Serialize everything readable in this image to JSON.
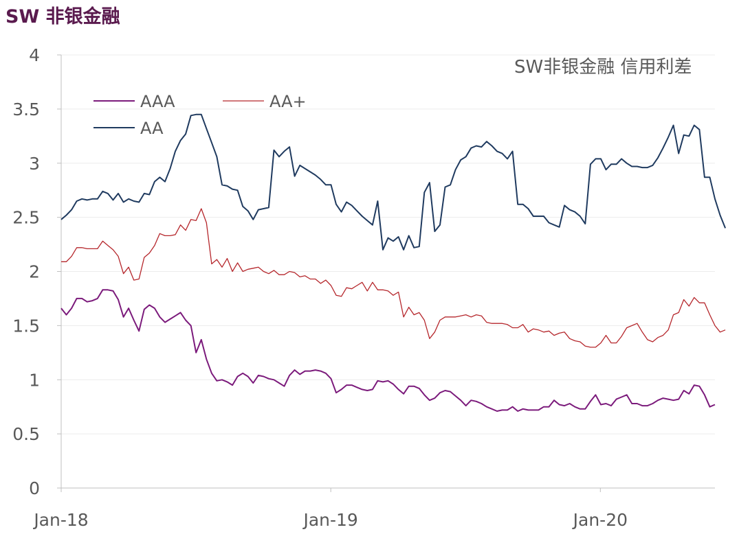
{
  "page_title": "SW 非银金融",
  "chart_data": {
    "type": "line",
    "title": "",
    "annotation": "SW非银金融 信用利差",
    "xlabel": "",
    "ylabel": "",
    "ylim": [
      0,
      4
    ],
    "yticks": [
      "0",
      "0.5",
      "1",
      "1.5",
      "2",
      "2.5",
      "3",
      "3.5",
      "4"
    ],
    "x_tick_labels": [
      "Jan-18",
      "Jan-19",
      "Jan-20"
    ],
    "x_range": [
      "2018-01",
      "2020-05"
    ],
    "grid": "horizontal",
    "legend_position": "top-left",
    "series": [
      {
        "name": "AAA",
        "color": "#7b1a7b",
        "values": [
          1.66,
          1.6,
          1.66,
          1.75,
          1.75,
          1.72,
          1.73,
          1.75,
          1.83,
          1.83,
          1.82,
          1.74,
          1.58,
          1.66,
          1.55,
          1.45,
          1.65,
          1.69,
          1.66,
          1.58,
          1.53,
          1.56,
          1.59,
          1.62,
          1.55,
          1.5,
          1.25,
          1.37,
          1.19,
          1.06,
          0.99,
          1.0,
          0.98,
          0.95,
          1.03,
          1.06,
          1.03,
          0.97,
          1.04,
          1.03,
          1.01,
          1.0,
          0.97,
          0.94,
          1.04,
          1.09,
          1.05,
          1.08,
          1.08,
          1.09,
          1.08,
          1.06,
          1.01,
          0.88,
          0.91,
          0.95,
          0.95,
          0.93,
          0.91,
          0.9,
          0.91,
          0.99,
          0.98,
          0.99,
          0.96,
          0.91,
          0.87,
          0.94,
          0.94,
          0.92,
          0.86,
          0.81,
          0.83,
          0.88,
          0.9,
          0.89,
          0.85,
          0.81,
          0.76,
          0.81,
          0.8,
          0.78,
          0.75,
          0.73,
          0.71,
          0.72,
          0.72,
          0.75,
          0.71,
          0.73,
          0.72,
          0.72,
          0.72,
          0.75,
          0.75,
          0.81,
          0.77,
          0.76,
          0.78,
          0.75,
          0.73,
          0.73,
          0.8,
          0.86,
          0.77,
          0.78,
          0.76,
          0.82,
          0.84,
          0.86,
          0.78,
          0.78,
          0.76,
          0.76,
          0.78,
          0.81,
          0.83,
          0.82,
          0.81,
          0.82,
          0.9,
          0.87,
          0.95,
          0.94,
          0.86,
          0.75,
          0.77
        ]
      },
      {
        "name": "AA+",
        "color": "#b5262b",
        "values": [
          2.09,
          2.09,
          2.14,
          2.22,
          2.22,
          2.21,
          2.21,
          2.21,
          2.28,
          2.24,
          2.2,
          2.14,
          1.98,
          2.04,
          1.92,
          1.93,
          2.13,
          2.17,
          2.24,
          2.35,
          2.33,
          2.33,
          2.34,
          2.43,
          2.38,
          2.48,
          2.47,
          2.58,
          2.45,
          2.07,
          2.11,
          2.04,
          2.12,
          2.0,
          2.08,
          2.0,
          2.02,
          2.03,
          2.04,
          2.0,
          1.98,
          2.01,
          1.97,
          1.97,
          2.0,
          1.99,
          1.95,
          1.96,
          1.93,
          1.93,
          1.89,
          1.92,
          1.87,
          1.78,
          1.77,
          1.85,
          1.84,
          1.87,
          1.9,
          1.82,
          1.9,
          1.83,
          1.83,
          1.82,
          1.78,
          1.81,
          1.58,
          1.67,
          1.6,
          1.62,
          1.55,
          1.38,
          1.44,
          1.55,
          1.58,
          1.58,
          1.58,
          1.59,
          1.6,
          1.58,
          1.6,
          1.59,
          1.53,
          1.52,
          1.52,
          1.52,
          1.51,
          1.48,
          1.48,
          1.51,
          1.44,
          1.47,
          1.46,
          1.44,
          1.45,
          1.41,
          1.43,
          1.44,
          1.38,
          1.36,
          1.35,
          1.31,
          1.3,
          1.3,
          1.34,
          1.41,
          1.34,
          1.34,
          1.4,
          1.48,
          1.5,
          1.52,
          1.44,
          1.37,
          1.35,
          1.39,
          1.41,
          1.46,
          1.6,
          1.62,
          1.74,
          1.68,
          1.76,
          1.71,
          1.71,
          1.6,
          1.5,
          1.44,
          1.46
        ]
      },
      {
        "name": "AA",
        "color": "#1f3a5f",
        "values": [
          2.48,
          2.52,
          2.57,
          2.65,
          2.67,
          2.66,
          2.67,
          2.67,
          2.74,
          2.72,
          2.66,
          2.72,
          2.64,
          2.67,
          2.65,
          2.64,
          2.72,
          2.71,
          2.83,
          2.87,
          2.83,
          2.95,
          3.11,
          3.21,
          3.27,
          3.44,
          3.45,
          3.45,
          3.32,
          3.19,
          3.06,
          2.8,
          2.79,
          2.76,
          2.75,
          2.6,
          2.56,
          2.48,
          2.57,
          2.58,
          2.59,
          3.12,
          3.06,
          3.11,
          3.15,
          2.88,
          2.98,
          2.95,
          2.92,
          2.89,
          2.85,
          2.8,
          2.8,
          2.62,
          2.55,
          2.64,
          2.61,
          2.56,
          2.51,
          2.47,
          2.43,
          2.65,
          2.2,
          2.31,
          2.28,
          2.32,
          2.2,
          2.33,
          2.22,
          2.23,
          2.73,
          2.82,
          2.37,
          2.43,
          2.78,
          2.8,
          2.94,
          3.03,
          3.06,
          3.14,
          3.16,
          3.15,
          3.2,
          3.16,
          3.11,
          3.09,
          3.04,
          3.11,
          2.62,
          2.62,
          2.58,
          2.51,
          2.51,
          2.51,
          2.45,
          2.43,
          2.41,
          2.61,
          2.57,
          2.55,
          2.51,
          2.44,
          2.99,
          3.04,
          3.04,
          2.94,
          2.99,
          2.99,
          3.04,
          3.0,
          2.97,
          2.97,
          2.96,
          2.96,
          2.98,
          3.05,
          3.14,
          3.24,
          3.35,
          3.09,
          3.26,
          3.25,
          3.35,
          3.31,
          2.87,
          2.87,
          2.67,
          2.52,
          2.4
        ]
      }
    ]
  }
}
